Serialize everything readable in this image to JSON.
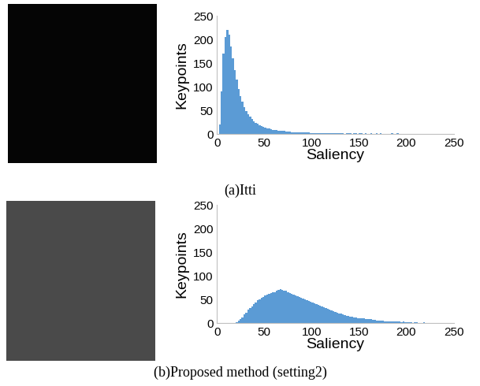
{
  "chart_data": [
    {
      "type": "histogram",
      "title": "(a)Itti",
      "x_label": "Saliency",
      "y_label": "Keypoints",
      "color": "#5b9bd5",
      "bins": [
        0,
        2,
        4,
        6,
        8,
        10,
        12,
        14,
        16,
        18,
        20,
        22,
        24,
        26,
        28,
        30,
        32,
        34,
        36,
        38,
        40,
        42,
        44,
        46,
        48,
        50,
        52,
        54,
        56,
        58,
        60,
        62,
        64,
        66,
        68,
        70,
        72,
        74,
        76,
        78,
        80,
        82,
        84,
        86,
        88,
        90,
        92,
        94,
        96,
        98,
        100,
        102,
        104,
        106,
        108,
        110,
        112,
        114,
        116,
        118,
        120,
        122,
        124,
        126,
        128,
        130,
        132,
        134,
        136,
        138,
        140,
        142,
        144,
        146,
        148,
        150,
        152,
        154,
        156,
        158,
        160,
        162,
        164,
        166,
        168,
        170,
        172,
        174,
        176,
        178,
        180,
        182,
        184,
        186,
        188,
        190,
        192,
        194,
        196,
        198,
        200
      ],
      "counts": [
        0,
        20,
        90,
        170,
        205,
        220,
        210,
        185,
        160,
        135,
        115,
        95,
        80,
        68,
        57,
        48,
        42,
        36,
        31,
        27,
        24,
        21,
        19,
        17,
        15,
        14,
        12,
        11,
        10,
        9,
        9,
        8,
        7,
        7,
        6,
        6,
        5,
        5,
        5,
        4,
        4,
        4,
        4,
        3,
        3,
        3,
        3,
        3,
        3,
        2,
        2,
        2,
        2,
        2,
        2,
        2,
        1,
        2,
        1,
        1,
        1,
        1,
        1,
        1,
        1,
        1,
        1,
        0,
        1,
        1,
        1,
        0,
        1,
        1,
        0,
        1,
        1,
        0,
        1,
        0,
        0,
        1,
        0,
        0,
        1,
        0,
        1,
        0,
        0,
        0,
        0,
        0,
        1,
        0,
        0,
        1,
        0,
        0,
        0,
        0
      ],
      "xlim": [
        0,
        250
      ],
      "ylim": [
        0,
        250
      ],
      "xticks": [
        0,
        50,
        100,
        150,
        200,
        250
      ],
      "yticks": [
        0,
        50,
        100,
        150,
        200,
        250
      ]
    },
    {
      "type": "histogram",
      "title": "(b)Proposed method (setting2)",
      "x_label": "Saliency",
      "y_label": "Keypoints",
      "color": "#5b9bd5",
      "bins": [
        0,
        2,
        4,
        6,
        8,
        10,
        12,
        14,
        16,
        18,
        20,
        22,
        24,
        26,
        28,
        30,
        32,
        34,
        36,
        38,
        40,
        42,
        44,
        46,
        48,
        50,
        52,
        54,
        56,
        58,
        60,
        62,
        64,
        66,
        68,
        70,
        72,
        74,
        76,
        78,
        80,
        82,
        84,
        86,
        88,
        90,
        92,
        94,
        96,
        98,
        100,
        102,
        104,
        106,
        108,
        110,
        112,
        114,
        116,
        118,
        120,
        122,
        124,
        126,
        128,
        130,
        132,
        134,
        136,
        138,
        140,
        142,
        144,
        146,
        148,
        150,
        152,
        154,
        156,
        158,
        160,
        162,
        164,
        166,
        168,
        170,
        172,
        174,
        176,
        178,
        180,
        182,
        184,
        186,
        188,
        190,
        192,
        194,
        196,
        198,
        200,
        202,
        204,
        206,
        208,
        210,
        212,
        214,
        216,
        218,
        220,
        222,
        224,
        226,
        228,
        230,
        232,
        234,
        236,
        238,
        240
      ],
      "counts": [
        0,
        0,
        0,
        0,
        0,
        0,
        0,
        0,
        0,
        0,
        2,
        5,
        8,
        12,
        18,
        22,
        28,
        32,
        36,
        40,
        44,
        48,
        50,
        54,
        56,
        58,
        60,
        62,
        64,
        65,
        66,
        68,
        70,
        72,
        70,
        68,
        69,
        66,
        64,
        62,
        60,
        58,
        57,
        55,
        54,
        52,
        50,
        48,
        47,
        45,
        44,
        42,
        40,
        39,
        37,
        35,
        34,
        32,
        30,
        29,
        27,
        25,
        24,
        22,
        21,
        20,
        18,
        17,
        16,
        15,
        14,
        13,
        12,
        12,
        11,
        11,
        10,
        10,
        9,
        9,
        8,
        8,
        7,
        7,
        6,
        6,
        5,
        5,
        4,
        4,
        4,
        4,
        3,
        3,
        3,
        3,
        3,
        2,
        3,
        2,
        2,
        2,
        2,
        1,
        2,
        2,
        1,
        1,
        1,
        2,
        1,
        1,
        1,
        0,
        1,
        1,
        0,
        1,
        0,
        0
      ],
      "xlim": [
        0,
        250
      ],
      "ylim": [
        0,
        250
      ],
      "xticks": [
        0,
        50,
        100,
        150,
        200,
        250
      ],
      "yticks": [
        0,
        50,
        100,
        150,
        200,
        250
      ]
    }
  ]
}
